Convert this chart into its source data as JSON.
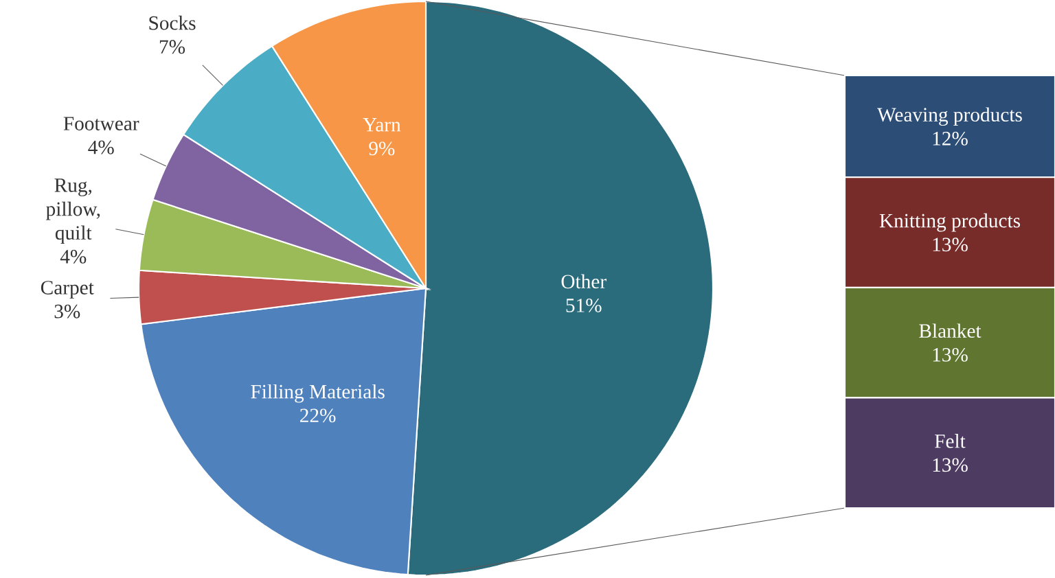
{
  "chart_data": [
    {
      "type": "pie",
      "categories": [
        "Other",
        "Filling Materials",
        "Carpet",
        "Rug, pillow, quilt",
        "Footwear",
        "Socks",
        "Yarn"
      ],
      "values": [
        51,
        22,
        3,
        4,
        4,
        7,
        9
      ],
      "colors": [
        "#2a6b7c",
        "#4f81bd",
        "#c0504d",
        "#9bbb59",
        "#8064a2",
        "#4bacc6",
        "#f79646"
      ],
      "value_labels": [
        "51%",
        "22%",
        "3%",
        "4%",
        "4%",
        "7%",
        "9%"
      ]
    },
    {
      "type": "bar",
      "stacked": true,
      "categories": [
        null
      ],
      "series": [
        {
          "name": "Felt",
          "color": "#4d3b62",
          "values": [
            13
          ],
          "value_labels": [
            "13%"
          ]
        },
        {
          "name": "Blanket",
          "color": "#5f7530",
          "values": [
            13
          ],
          "value_labels": [
            "13%"
          ]
        },
        {
          "name": "Knitting products",
          "color": "#772c2a",
          "values": [
            13
          ],
          "value_labels": [
            "13%"
          ]
        },
        {
          "name": "Weaving products",
          "color": "#2c4d75",
          "values": [
            12
          ],
          "value_labels": [
            "12%"
          ]
        }
      ]
    }
  ]
}
